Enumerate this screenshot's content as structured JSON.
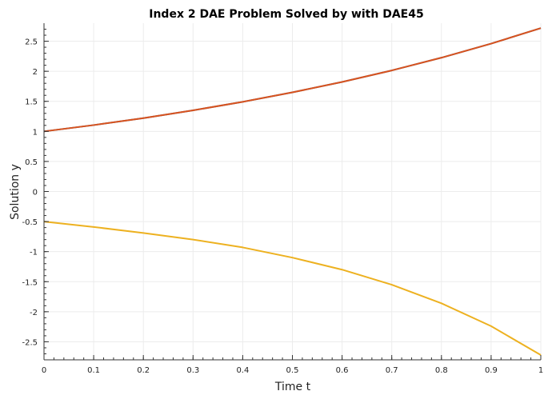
{
  "chart_data": {
    "type": "line",
    "title": "Index 2 DAE Problem Solved by with DAE45",
    "xlabel": "Time t",
    "ylabel": "Solution y",
    "xlim": [
      0,
      1
    ],
    "ylim": [
      -2.8,
      2.8
    ],
    "grid": true,
    "xticks": [
      0,
      0.1,
      0.2,
      0.3,
      0.4,
      0.5,
      0.6,
      0.7,
      0.8,
      0.9,
      1
    ],
    "xtick_labels": [
      "0",
      "0.1",
      "0.2",
      "0.3",
      "0.4",
      "0.5",
      "0.6",
      "0.7",
      "0.8",
      "0.9",
      "1"
    ],
    "yticks": [
      -2.5,
      -2,
      -1.5,
      -1,
      -0.5,
      0,
      0.5,
      1,
      1.5,
      2,
      2.5
    ],
    "ytick_labels": [
      "-2.5",
      "-2",
      "-1.5",
      "-1",
      "-0.5",
      "0",
      "0.5",
      "1",
      "1.5",
      "2",
      "2.5"
    ],
    "x": [
      0,
      0.1,
      0.2,
      0.3,
      0.4,
      0.5,
      0.6,
      0.7,
      0.8,
      0.9,
      1
    ],
    "series": [
      {
        "color": "#3a6ea5",
        "values": [
          1.0,
          1.105,
          1.221,
          1.35,
          1.492,
          1.649,
          1.822,
          2.014,
          2.226,
          2.46,
          2.718
        ]
      },
      {
        "color": "#d9531e",
        "values": [
          1.0,
          1.105,
          1.221,
          1.35,
          1.492,
          1.649,
          1.822,
          2.014,
          2.226,
          2.46,
          2.718
        ]
      },
      {
        "color": "#edb120",
        "values": [
          -0.5,
          -0.59,
          -0.69,
          -0.8,
          -0.93,
          -1.1,
          -1.3,
          -1.55,
          -1.86,
          -2.24,
          -2.72
        ]
      }
    ]
  }
}
